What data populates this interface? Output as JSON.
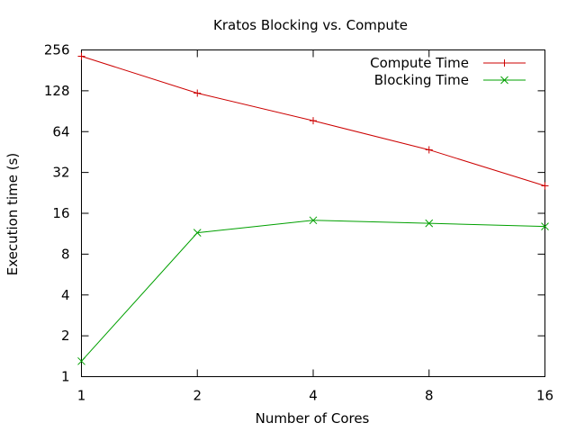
{
  "chart_data": {
    "type": "line",
    "title": "Kratos Blocking vs. Compute",
    "xlabel": "Number of Cores",
    "ylabel": "Execution time (s)",
    "x_scale": "log2",
    "y_scale": "log2",
    "xlim": [
      1,
      16
    ],
    "ylim": [
      1,
      256
    ],
    "x_ticks": [
      "1",
      "2",
      "4",
      "8",
      "16"
    ],
    "y_ticks": [
      "1",
      "2",
      "4",
      "8",
      "16",
      "32",
      "64",
      "128",
      "256"
    ],
    "grid": false,
    "legend_position": "top-right",
    "x": [
      1,
      2,
      4,
      8,
      16
    ],
    "series": [
      {
        "name": "Compute Time",
        "color": "#cc0000",
        "marker": "plus",
        "values": [
          230,
          123,
          77,
          47,
          25.5
        ]
      },
      {
        "name": "Blocking Time",
        "color": "#00a000",
        "marker": "cross",
        "values": [
          1.3,
          11.5,
          14.2,
          13.5,
          12.8
        ]
      }
    ]
  }
}
